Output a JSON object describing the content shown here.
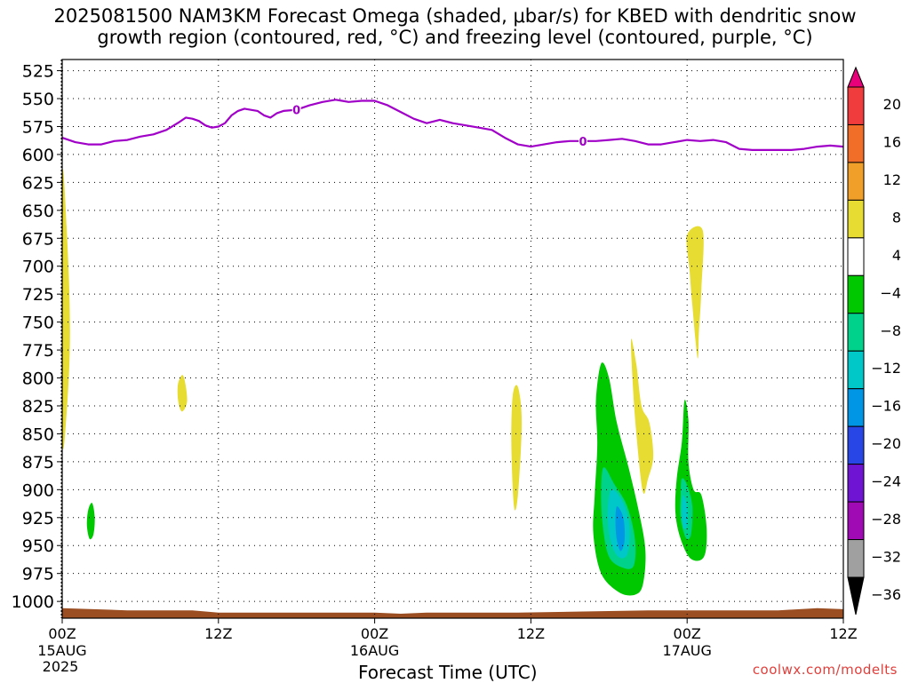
{
  "title_line1": "2025081500 NAM3KM Forecast Omega (shaded, μbar/s) for KBED with dendritic snow",
  "title_line2": "growth region (contoured, red, °C) and freezing level (contoured, purple, °C)",
  "credit": "coolwx.com/modelts",
  "chart_data": {
    "type": "heatmap",
    "xlabel": "Forecast Time (UTC)",
    "ylabel": "",
    "x_axis": {
      "range": [
        "2025-08-15 00Z",
        "2025-08-17 12Z"
      ],
      "ticks": [
        {
          "hours": 0,
          "label": "00Z",
          "sub": "15AUG",
          "sub2": "2025"
        },
        {
          "hours": 12,
          "label": "12Z",
          "sub": "",
          "sub2": ""
        },
        {
          "hours": 24,
          "label": "00Z",
          "sub": "16AUG",
          "sub2": ""
        },
        {
          "hours": 36,
          "label": "12Z",
          "sub": "",
          "sub2": ""
        },
        {
          "hours": 48,
          "label": "00Z",
          "sub": "17AUG",
          "sub2": ""
        },
        {
          "hours": 60,
          "label": "12Z",
          "sub": "",
          "sub2": ""
        }
      ]
    },
    "y_axis": {
      "units": "hPa",
      "inverted": true,
      "range": [
        515,
        1015
      ],
      "ticks": [
        525,
        550,
        575,
        600,
        625,
        650,
        675,
        700,
        725,
        750,
        775,
        800,
        825,
        850,
        875,
        900,
        925,
        950,
        975,
        1000
      ]
    },
    "grid": "dotted",
    "colorbar": {
      "labels": [
        "20",
        "16",
        "12",
        "8",
        "4",
        "−4",
        "−8",
        "−12",
        "−16",
        "−20",
        "−24",
        "−28",
        "−32",
        "−36"
      ],
      "bands": [
        {
          "range": [
            ">20"
          ],
          "color": "#e8007a"
        },
        {
          "range": [
            16,
            20
          ],
          "color": "#f03c3c"
        },
        {
          "range": [
            12,
            16
          ],
          "color": "#f06e28"
        },
        {
          "range": [
            8,
            12
          ],
          "color": "#f0a028"
        },
        {
          "range": [
            4,
            8
          ],
          "color": "#e6dc32"
        },
        {
          "range": [
            -4,
            4
          ],
          "color": "#ffffff"
        },
        {
          "range": [
            -8,
            -4
          ],
          "color": "#00c800"
        },
        {
          "range": [
            -12,
            -8
          ],
          "color": "#00d28c"
        },
        {
          "range": [
            -16,
            -12
          ],
          "color": "#00c8c8"
        },
        {
          "range": [
            -20,
            -16
          ],
          "color": "#0096e6"
        },
        {
          "range": [
            -24,
            -20
          ],
          "color": "#2846e6"
        },
        {
          "range": [
            -28,
            -24
          ],
          "color": "#6e14d2"
        },
        {
          "range": [
            -32,
            -28
          ],
          "color": "#a00ab4"
        },
        {
          "range": [
            -36,
            -32
          ],
          "color": "#a0a0a0"
        },
        {
          "range": [
            "<-36"
          ],
          "color": "#000000"
        }
      ]
    },
    "freezing_level": {
      "label": "0",
      "color": "#a000c8",
      "points": [
        [
          0,
          585
        ],
        [
          1,
          589
        ],
        [
          2,
          591
        ],
        [
          3,
          591
        ],
        [
          4,
          588
        ],
        [
          5,
          587
        ],
        [
          6,
          584
        ],
        [
          7,
          582
        ],
        [
          8,
          578
        ],
        [
          9,
          571
        ],
        [
          9.5,
          567
        ],
        [
          10,
          568
        ],
        [
          10.5,
          570
        ],
        [
          11,
          574
        ],
        [
          11.5,
          576
        ],
        [
          12,
          575
        ],
        [
          12.5,
          572
        ],
        [
          13,
          565
        ],
        [
          13.5,
          561
        ],
        [
          14,
          559
        ],
        [
          15,
          561
        ],
        [
          15.5,
          565
        ],
        [
          16,
          567
        ],
        [
          16.5,
          563
        ],
        [
          17,
          561
        ],
        [
          18,
          560
        ],
        [
          19,
          556
        ],
        [
          20,
          553
        ],
        [
          21,
          551
        ],
        [
          21.5,
          552
        ],
        [
          22,
          553
        ],
        [
          23,
          552
        ],
        [
          24,
          552
        ],
        [
          25,
          556
        ],
        [
          26,
          562
        ],
        [
          27,
          568
        ],
        [
          28,
          572
        ],
        [
          29,
          569
        ],
        [
          30,
          572
        ],
        [
          31,
          574
        ],
        [
          32,
          576
        ],
        [
          33,
          578
        ],
        [
          34,
          585
        ],
        [
          35,
          591
        ],
        [
          36,
          593
        ],
        [
          37,
          591
        ],
        [
          38,
          589
        ],
        [
          39,
          588
        ],
        [
          40,
          588
        ],
        [
          41,
          588
        ],
        [
          42,
          587
        ],
        [
          43,
          586
        ],
        [
          44,
          588
        ],
        [
          45,
          591
        ],
        [
          46,
          591
        ],
        [
          47,
          589
        ],
        [
          48,
          587
        ],
        [
          49,
          588
        ],
        [
          50,
          587
        ],
        [
          51,
          589
        ],
        [
          52,
          595
        ],
        [
          53,
          596
        ],
        [
          54,
          596
        ],
        [
          55,
          596
        ],
        [
          56,
          596
        ],
        [
          57,
          595
        ],
        [
          58,
          593
        ],
        [
          59,
          592
        ],
        [
          60,
          593
        ]
      ]
    },
    "omega_regions": [
      {
        "value_band": "4 to 8",
        "color": "#e6dc32",
        "outline": [
          [
            0.0,
            620
          ],
          [
            0.4,
            680
          ],
          [
            0.6,
            760
          ],
          [
            0.35,
            830
          ],
          [
            0.0,
            850
          ]
        ]
      },
      {
        "value_band": "4 to 8",
        "color": "#e6dc32",
        "outline": [
          [
            8.9,
            805
          ],
          [
            9.3,
            798
          ],
          [
            9.6,
            820
          ],
          [
            9.2,
            830
          ],
          [
            8.9,
            820
          ]
        ]
      },
      {
        "value_band": "4 to 8",
        "color": "#e6dc32",
        "outline": [
          [
            34.6,
            816
          ],
          [
            35.0,
            808
          ],
          [
            35.3,
            840
          ],
          [
            35.0,
            905
          ],
          [
            34.7,
            915
          ],
          [
            34.5,
            860
          ]
        ]
      },
      {
        "value_band": "4 to 8",
        "color": "#e6dc32",
        "outline": [
          [
            43.7,
            765
          ],
          [
            44.1,
            788
          ],
          [
            44.5,
            825
          ],
          [
            45.1,
            840
          ],
          [
            45.4,
            870
          ],
          [
            45.0,
            890
          ],
          [
            44.6,
            902
          ],
          [
            44.1,
            850
          ],
          [
            43.8,
            800
          ]
        ]
      },
      {
        "value_band": "4 to 8",
        "color": "#e6dc32",
        "outline": [
          [
            48.0,
            672
          ],
          [
            49.2,
            668
          ],
          [
            49.1,
            720
          ],
          [
            48.9,
            760
          ],
          [
            48.8,
            782
          ],
          [
            48.4,
            735
          ],
          [
            48.2,
            705
          ]
        ]
      },
      {
        "value_band": "-8 to -4",
        "color": "#00c800",
        "outline": [
          [
            2.0,
            918
          ],
          [
            2.3,
            912
          ],
          [
            2.5,
            925
          ],
          [
            2.4,
            940
          ],
          [
            2.1,
            944
          ],
          [
            1.9,
            932
          ]
        ]
      },
      {
        "value_band": "-8 to -4",
        "color": "#00c800",
        "outline": [
          [
            41.4,
            787
          ],
          [
            42.0,
            800
          ],
          [
            42.6,
            840
          ],
          [
            43.5,
            880
          ],
          [
            44.3,
            920
          ],
          [
            44.8,
            955
          ],
          [
            44.6,
            985
          ],
          [
            44.0,
            994
          ],
          [
            42.8,
            992
          ],
          [
            41.4,
            975
          ],
          [
            40.8,
            940
          ],
          [
            40.9,
            905
          ],
          [
            41.1,
            860
          ],
          [
            41.0,
            820
          ]
        ]
      },
      {
        "value_band": "-8 to -4",
        "color": "#00c800",
        "outline": [
          [
            47.8,
            820
          ],
          [
            48.1,
            838
          ],
          [
            48.1,
            875
          ],
          [
            48.5,
            900
          ],
          [
            49.1,
            905
          ],
          [
            49.5,
            935
          ],
          [
            49.3,
            960
          ],
          [
            48.3,
            962
          ],
          [
            47.5,
            944
          ],
          [
            47.1,
            920
          ],
          [
            47.2,
            890
          ],
          [
            47.6,
            857
          ]
        ]
      },
      {
        "value_band": "-12 to -8",
        "color": "#00d28c",
        "outline": [
          [
            41.6,
            880
          ],
          [
            42.4,
            895
          ],
          [
            43.4,
            915
          ],
          [
            44.0,
            945
          ],
          [
            43.9,
            968
          ],
          [
            43.1,
            970
          ],
          [
            42.0,
            960
          ],
          [
            41.5,
            930
          ],
          [
            41.4,
            900
          ]
        ]
      },
      {
        "value_band": "-12 to -8",
        "color": "#00d28c",
        "outline": [
          [
            47.6,
            890
          ],
          [
            48.0,
            896
          ],
          [
            48.4,
            915
          ],
          [
            48.3,
            940
          ],
          [
            47.9,
            943
          ],
          [
            47.5,
            925
          ],
          [
            47.5,
            905
          ]
        ]
      },
      {
        "value_band": "-16 to -12",
        "color": "#00c8c8",
        "outline": [
          [
            42.2,
            900
          ],
          [
            43.1,
            912
          ],
          [
            43.6,
            935
          ],
          [
            43.4,
            958
          ],
          [
            42.7,
            960
          ],
          [
            42.1,
            945
          ],
          [
            41.9,
            920
          ]
        ]
      },
      {
        "value_band": "-16 to -12",
        "color": "#00c8c8",
        "outline": [
          [
            47.7,
            905
          ],
          [
            48.0,
            915
          ],
          [
            48.0,
            932
          ],
          [
            47.7,
            934
          ],
          [
            47.6,
            918
          ]
        ]
      },
      {
        "value_band": "-20 to -16",
        "color": "#0096e6",
        "outline": [
          [
            42.6,
            915
          ],
          [
            43.1,
            925
          ],
          [
            43.2,
            945
          ],
          [
            42.9,
            955
          ],
          [
            42.6,
            945
          ],
          [
            42.5,
            930
          ]
        ]
      }
    ],
    "terrain": {
      "color": "#9a4e22",
      "top_points": [
        [
          0,
          1006
        ],
        [
          5,
          1008
        ],
        [
          10,
          1008
        ],
        [
          12,
          1010
        ],
        [
          17,
          1010
        ],
        [
          24,
          1010
        ],
        [
          26,
          1011
        ],
        [
          28,
          1010
        ],
        [
          35,
          1010
        ],
        [
          40,
          1009
        ],
        [
          45,
          1008
        ],
        [
          50,
          1008
        ],
        [
          55,
          1008
        ],
        [
          58,
          1006
        ],
        [
          60,
          1007
        ]
      ],
      "bottom": 1015
    }
  }
}
